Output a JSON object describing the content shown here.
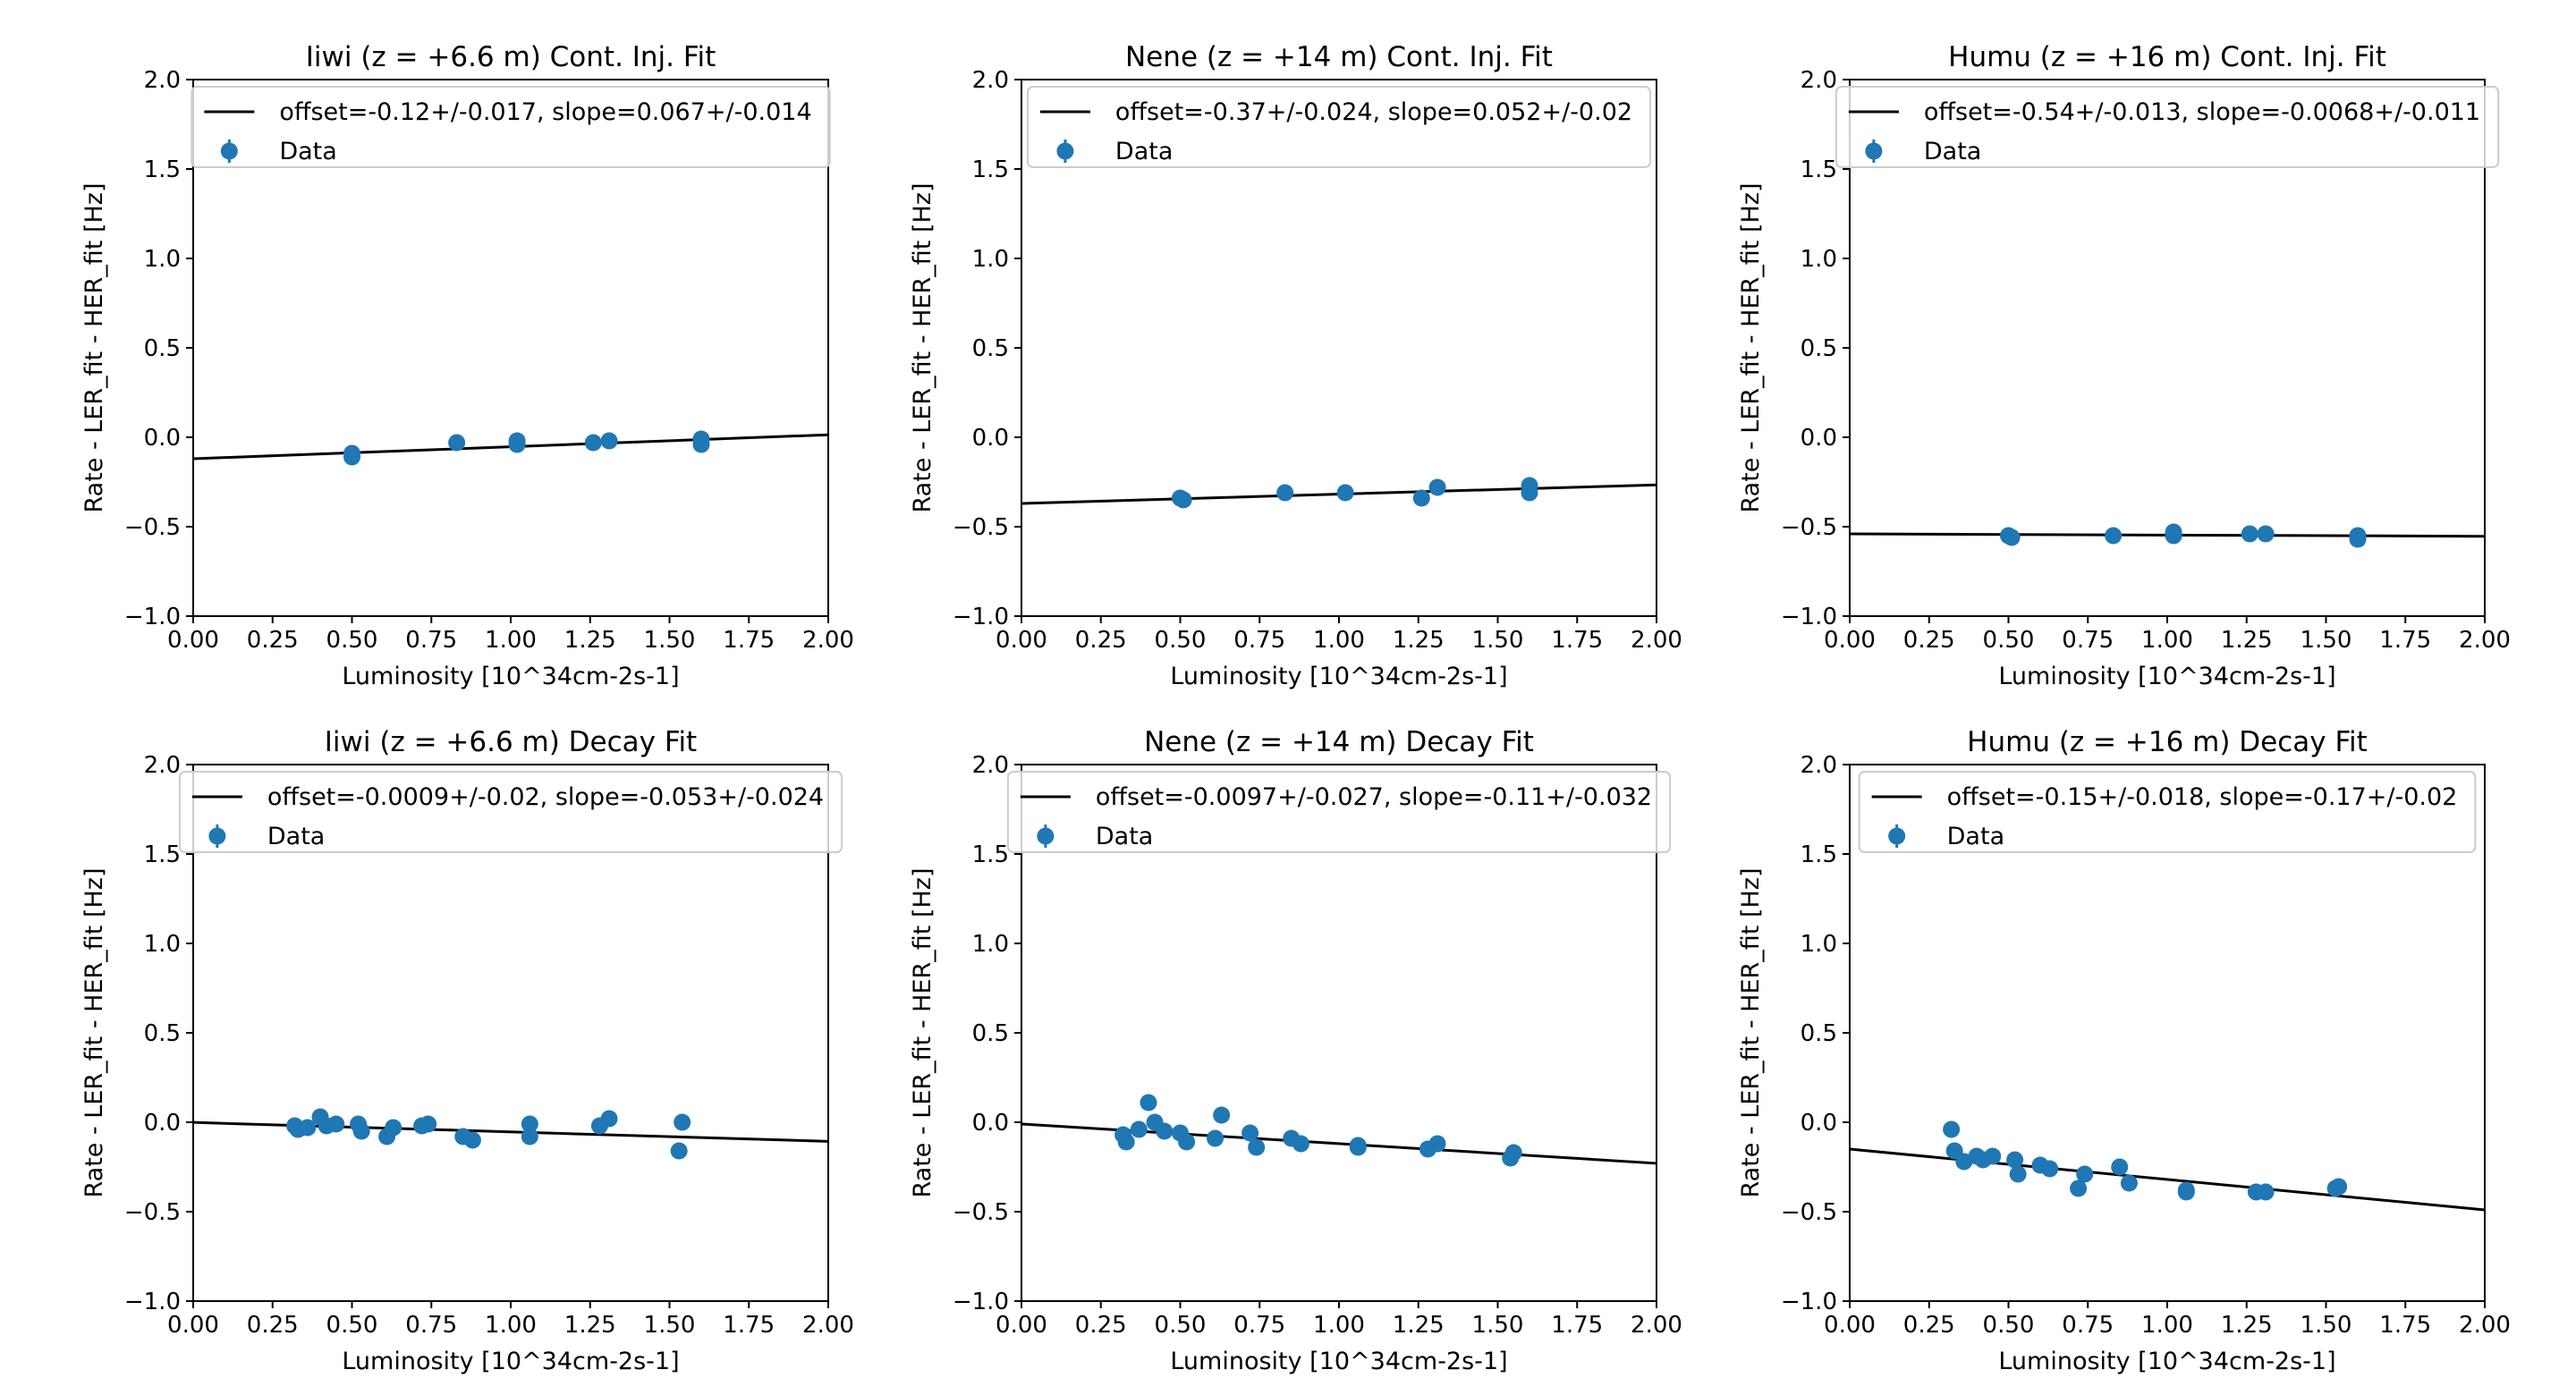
{
  "colors": {
    "fit": "#000000",
    "data": "#1f77b4",
    "legend_frame": "#cccccc"
  },
  "chart_data": [
    {
      "type": "scatter",
      "title": "Iiwi (z = +6.6 m) Cont. Inj. Fit",
      "xlabel": "Luminosity [10^34cm-2s-1]",
      "ylabel": "Rate - LER_fit - HER_fit [Hz]",
      "xlim": [
        0,
        2
      ],
      "ylim": [
        -1,
        2
      ],
      "xticks": [
        "0.00",
        "0.25",
        "0.50",
        "0.75",
        "1.00",
        "1.25",
        "1.50",
        "1.75",
        "2.00"
      ],
      "yticks": [
        "−1.0",
        "−0.5",
        "0.0",
        "0.5",
        "1.0",
        "1.5",
        "2.0"
      ],
      "legend_position": "top",
      "fit": {
        "label": "offset=-0.12+/-0.017, slope=0.067+/-0.014",
        "offset": -0.12,
        "slope": 0.067
      },
      "series": [
        {
          "name": "Data",
          "x": [
            0.5,
            0.5,
            0.83,
            1.02,
            1.02,
            1.26,
            1.31,
            1.6,
            1.6
          ],
          "y": [
            -0.09,
            -0.11,
            -0.03,
            -0.02,
            -0.04,
            -0.03,
            -0.02,
            -0.01,
            -0.04
          ],
          "yerr": [
            0.015,
            0.015,
            0.015,
            0.015,
            0.015,
            0.015,
            0.015,
            0.015,
            0.015
          ]
        }
      ]
    },
    {
      "type": "scatter",
      "title": "Nene (z = +14 m) Cont. Inj. Fit",
      "xlabel": "Luminosity [10^34cm-2s-1]",
      "ylabel": "Rate - LER_fit - HER_fit [Hz]",
      "xlim": [
        0,
        2
      ],
      "ylim": [
        -1,
        2
      ],
      "xticks": [
        "0.00",
        "0.25",
        "0.50",
        "0.75",
        "1.00",
        "1.25",
        "1.50",
        "1.75",
        "2.00"
      ],
      "yticks": [
        "−1.0",
        "−0.5",
        "0.0",
        "0.5",
        "1.0",
        "1.5",
        "2.0"
      ],
      "legend_position": "top",
      "fit": {
        "label": "offset=-0.37+/-0.024, slope=0.052+/-0.02",
        "offset": -0.37,
        "slope": 0.052
      },
      "series": [
        {
          "name": "Data",
          "x": [
            0.5,
            0.51,
            0.83,
            1.02,
            1.26,
            1.31,
            1.6,
            1.6
          ],
          "y": [
            -0.34,
            -0.35,
            -0.31,
            -0.31,
            -0.34,
            -0.28,
            -0.27,
            -0.31
          ],
          "yerr": [
            0.015,
            0.015,
            0.015,
            0.015,
            0.015,
            0.015,
            0.015,
            0.015
          ]
        }
      ]
    },
    {
      "type": "scatter",
      "title": "Humu (z = +16 m) Cont. Inj. Fit",
      "xlabel": "Luminosity [10^34cm-2s-1]",
      "ylabel": "Rate - LER_fit - HER_fit [Hz]",
      "xlim": [
        0,
        2
      ],
      "ylim": [
        -1,
        2
      ],
      "xticks": [
        "0.00",
        "0.25",
        "0.50",
        "0.75",
        "1.00",
        "1.25",
        "1.50",
        "1.75",
        "2.00"
      ],
      "yticks": [
        "−1.0",
        "−0.5",
        "0.0",
        "0.5",
        "1.0",
        "1.5",
        "2.0"
      ],
      "legend_position": "top",
      "fit": {
        "label": "offset=-0.54+/-0.013, slope=-0.0068+/-0.011",
        "offset": -0.54,
        "slope": -0.0068
      },
      "series": [
        {
          "name": "Data",
          "x": [
            0.5,
            0.51,
            0.83,
            1.02,
            1.02,
            1.26,
            1.31,
            1.6,
            1.6
          ],
          "y": [
            -0.55,
            -0.56,
            -0.55,
            -0.53,
            -0.55,
            -0.54,
            -0.54,
            -0.55,
            -0.57
          ],
          "yerr": [
            0.012,
            0.012,
            0.012,
            0.012,
            0.012,
            0.012,
            0.012,
            0.012,
            0.012
          ]
        }
      ]
    },
    {
      "type": "scatter",
      "title": "Iiwi (z = +6.6 m) Decay Fit",
      "xlabel": "Luminosity [10^34cm-2s-1]",
      "ylabel": "Rate - LER_fit - HER_fit [Hz]",
      "xlim": [
        0,
        2
      ],
      "ylim": [
        -1,
        2
      ],
      "xticks": [
        "0.00",
        "0.25",
        "0.50",
        "0.75",
        "1.00",
        "1.25",
        "1.50",
        "1.75",
        "2.00"
      ],
      "yticks": [
        "−1.0",
        "−0.5",
        "0.0",
        "0.5",
        "1.0",
        "1.5",
        "2.0"
      ],
      "legend_position": "top",
      "fit": {
        "label": "offset=-0.0009+/-0.02, slope=-0.053+/-0.024",
        "offset": -0.0009,
        "slope": -0.053
      },
      "series": [
        {
          "name": "Data",
          "x": [
            0.32,
            0.33,
            0.36,
            0.4,
            0.42,
            0.45,
            0.52,
            0.53,
            0.61,
            0.63,
            0.72,
            0.74,
            0.85,
            0.88,
            1.06,
            1.06,
            1.28,
            1.31,
            1.53,
            1.54
          ],
          "y": [
            -0.02,
            -0.04,
            -0.03,
            0.03,
            -0.02,
            -0.01,
            -0.01,
            -0.05,
            -0.08,
            -0.03,
            -0.02,
            -0.01,
            -0.08,
            -0.1,
            -0.01,
            -0.08,
            -0.02,
            0.02,
            -0.16,
            0.0
          ],
          "yerr": [
            0.02,
            0.02,
            0.02,
            0.03,
            0.02,
            0.02,
            0.03,
            0.02,
            0.03,
            0.02,
            0.02,
            0.02,
            0.02,
            0.02,
            0.02,
            0.02,
            0.02,
            0.03,
            0.02,
            0.02
          ]
        }
      ]
    },
    {
      "type": "scatter",
      "title": "Nene (z = +14 m) Decay Fit",
      "xlabel": "Luminosity [10^34cm-2s-1]",
      "ylabel": "Rate - LER_fit - HER_fit [Hz]",
      "xlim": [
        0,
        2
      ],
      "ylim": [
        -1,
        2
      ],
      "xticks": [
        "0.00",
        "0.25",
        "0.50",
        "0.75",
        "1.00",
        "1.25",
        "1.50",
        "1.75",
        "2.00"
      ],
      "yticks": [
        "−1.0",
        "−0.5",
        "0.0",
        "0.5",
        "1.0",
        "1.5",
        "2.0"
      ],
      "legend_position": "top",
      "fit": {
        "label": "offset=-0.0097+/-0.027, slope=-0.11+/-0.032",
        "offset": -0.0097,
        "slope": -0.11
      },
      "series": [
        {
          "name": "Data",
          "x": [
            0.32,
            0.33,
            0.37,
            0.4,
            0.42,
            0.45,
            0.5,
            0.52,
            0.61,
            0.63,
            0.72,
            0.74,
            0.85,
            0.88,
            1.06,
            1.06,
            1.28,
            1.31,
            1.54,
            1.55
          ],
          "y": [
            -0.07,
            -0.11,
            -0.04,
            0.11,
            0.0,
            -0.05,
            -0.06,
            -0.11,
            -0.09,
            0.04,
            -0.06,
            -0.14,
            -0.09,
            -0.12,
            -0.14,
            -0.13,
            -0.15,
            -0.12,
            -0.2,
            -0.17
          ],
          "yerr": [
            0.03,
            0.03,
            0.03,
            0.04,
            0.03,
            0.03,
            0.03,
            0.03,
            0.03,
            0.04,
            0.03,
            0.03,
            0.03,
            0.03,
            0.03,
            0.03,
            0.03,
            0.03,
            0.04,
            0.03
          ]
        }
      ]
    },
    {
      "type": "scatter",
      "title": "Humu (z = +16 m) Decay Fit",
      "xlabel": "Luminosity [10^34cm-2s-1]",
      "ylabel": "Rate - LER_fit - HER_fit [Hz]",
      "xlim": [
        0,
        2
      ],
      "ylim": [
        -1,
        2
      ],
      "xticks": [
        "0.00",
        "0.25",
        "0.50",
        "0.75",
        "1.00",
        "1.25",
        "1.50",
        "1.75",
        "2.00"
      ],
      "yticks": [
        "−1.0",
        "−0.5",
        "0.0",
        "0.5",
        "1.0",
        "1.5",
        "2.0"
      ],
      "legend_position": "top",
      "fit": {
        "label": "offset=-0.15+/-0.018, slope=-0.17+/-0.02",
        "offset": -0.15,
        "slope": -0.17
      },
      "series": [
        {
          "name": "Data",
          "x": [
            0.32,
            0.33,
            0.36,
            0.4,
            0.42,
            0.45,
            0.52,
            0.53,
            0.6,
            0.63,
            0.72,
            0.74,
            0.85,
            0.88,
            1.06,
            1.06,
            1.28,
            1.31,
            1.53,
            1.54
          ],
          "y": [
            -0.04,
            -0.16,
            -0.22,
            -0.19,
            -0.21,
            -0.19,
            -0.21,
            -0.29,
            -0.24,
            -0.26,
            -0.37,
            -0.29,
            -0.25,
            -0.34,
            -0.38,
            -0.39,
            -0.39,
            -0.39,
            -0.37,
            -0.36
          ],
          "yerr": [
            0.02,
            0.02,
            0.02,
            0.02,
            0.02,
            0.02,
            0.02,
            0.02,
            0.02,
            0.02,
            0.02,
            0.02,
            0.02,
            0.02,
            0.02,
            0.02,
            0.02,
            0.02,
            0.02,
            0.02
          ]
        }
      ]
    }
  ]
}
